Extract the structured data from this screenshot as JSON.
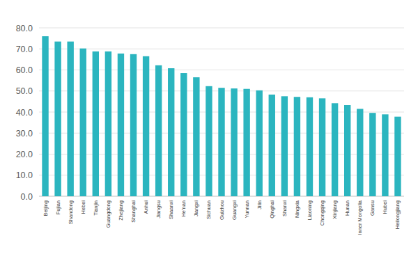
{
  "chart_data": {
    "type": "bar",
    "categories": [
      "Beijing",
      "Fujian",
      "Shandong",
      "Hebei",
      "Tianjin",
      "Guangdong",
      "Zhejiang",
      "Shanghai",
      "Anhui",
      "Jiangsu",
      "Shaanxi",
      "He'nan",
      "Jiangxi",
      "Sichuan",
      "Guizhou",
      "Guangxi",
      "Yunnan",
      "Jilin",
      "Qinghai",
      "Shanxi",
      "Ningxia",
      "Liaoning",
      "Chongqing",
      "Xinjiang",
      "Hunan",
      "Inner Mongolia",
      "Gansu",
      "Hubei",
      "Heilongjiang"
    ],
    "values": [
      76.0,
      73.5,
      73.5,
      70.2,
      68.8,
      68.8,
      67.8,
      67.5,
      66.5,
      62.2,
      60.8,
      58.5,
      56.5,
      52.3,
      51.5,
      51.2,
      51.0,
      50.3,
      48.3,
      47.5,
      47.2,
      47.0,
      46.5,
      44.2,
      43.3,
      41.5,
      39.6,
      38.9,
      37.8
    ],
    "color": "#2bb5bf",
    "ylim": [
      0,
      80
    ],
    "yticks": [
      {
        "value": 0,
        "label": "0.0"
      },
      {
        "value": 10,
        "label": "10.0"
      },
      {
        "value": 20,
        "label": "20.0"
      },
      {
        "value": 30,
        "label": "30.0"
      },
      {
        "value": 40,
        "label": "40.0"
      },
      {
        "value": 50,
        "label": "50.0"
      },
      {
        "value": 60,
        "label": "60.0"
      },
      {
        "value": 70,
        "label": "70.0"
      },
      {
        "value": 80,
        "label": "80.0"
      }
    ],
    "grid": true
  }
}
